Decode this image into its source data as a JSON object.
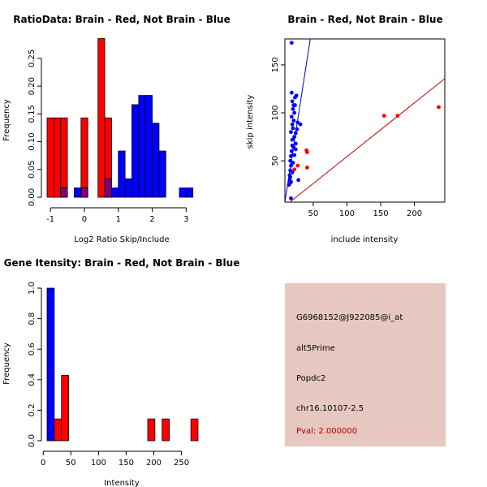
{
  "colors": {
    "red": "#ff0000",
    "blue": "#0000ff",
    "overlap": "#7f007f",
    "panel": "#e6c8c0"
  },
  "info_panel": {
    "probe": "G6968152@J922085@i_at",
    "event": "alt5Prime",
    "gene": "Popdc2",
    "location": "chr16.10107-2.5",
    "pval": "Pval: 2.000000"
  },
  "chart_data": [
    {
      "id": "ratio",
      "type": "bar",
      "title": "RatioData: Brain - Red, Not Brain - Blue",
      "xlabel": "Log2 Ratio Skip/Include",
      "ylabel": "Frequency",
      "xlim": [
        -1.1,
        3.35
      ],
      "ylim": [
        0,
        0.285
      ],
      "xticks": [
        -1,
        0,
        1,
        2,
        3
      ],
      "yticks": [
        0.0,
        0.05,
        0.1,
        0.15,
        0.2,
        0.25
      ],
      "ytick_labels": [
        "0.00",
        "0.05",
        "0.10",
        "0.15",
        "0.20",
        "0.25"
      ],
      "series": [
        {
          "name": "Brain",
          "color": "red",
          "bars": [
            {
              "x0": -1.1,
              "x1": -0.9,
              "y": 0.1429
            },
            {
              "x0": -0.9,
              "x1": -0.7,
              "y": 0.1429
            },
            {
              "x0": -0.7,
              "x1": -0.5,
              "y": 0.1429
            },
            {
              "x0": -0.1,
              "x1": 0.1,
              "y": 0.1429
            },
            {
              "x0": 0.4,
              "x1": 0.6,
              "y": 0.2857
            },
            {
              "x0": 0.6,
              "x1": 0.8,
              "y": 0.1429
            }
          ]
        },
        {
          "name": "Not Brain",
          "color": "blue",
          "bars": [
            {
              "x0": -0.7,
              "x1": -0.5,
              "y": 0.0167
            },
            {
              "x0": -0.3,
              "x1": -0.1,
              "y": 0.0167
            },
            {
              "x0": -0.1,
              "x1": 0.1,
              "y": 0.0167
            },
            {
              "x0": 0.6,
              "x1": 0.8,
              "y": 0.0333
            },
            {
              "x0": 0.8,
              "x1": 1.0,
              "y": 0.0167
            },
            {
              "x0": 1.0,
              "x1": 1.2,
              "y": 0.0833
            },
            {
              "x0": 1.2,
              "x1": 1.4,
              "y": 0.0333
            },
            {
              "x0": 1.4,
              "x1": 1.6,
              "y": 0.1667
            },
            {
              "x0": 1.6,
              "x1": 1.8,
              "y": 0.1833
            },
            {
              "x0": 1.8,
              "x1": 2.0,
              "y": 0.1833
            },
            {
              "x0": 2.0,
              "x1": 2.2,
              "y": 0.1333
            },
            {
              "x0": 2.2,
              "x1": 2.4,
              "y": 0.0833
            },
            {
              "x0": 2.8,
              "x1": 3.0,
              "y": 0.0167
            },
            {
              "x0": 3.0,
              "x1": 3.2,
              "y": 0.0167
            }
          ]
        }
      ]
    },
    {
      "id": "scatter",
      "type": "scatter",
      "title": "Brain - Red, Not Brain - Blue",
      "xlabel": "include intensity",
      "ylabel": "skip intensity",
      "xlim": [
        8,
        245
      ],
      "ylim": [
        7,
        177
      ],
      "xticks": [
        50,
        100,
        150,
        200
      ],
      "yticks": [
        50,
        100,
        150
      ],
      "series": [
        {
          "name": "Brain",
          "color": "red",
          "points": [
            [
              22,
              41
            ],
            [
              27,
              45
            ],
            [
              40,
              61
            ],
            [
              41,
              59
            ],
            [
              41,
              43
            ],
            [
              155,
              97
            ],
            [
              175,
              97
            ],
            [
              236,
              106
            ]
          ],
          "line": {
            "x": [
              8,
              245
            ],
            "y": [
              2.8,
              135.7
            ]
          }
        },
        {
          "name": "Not Brain",
          "color": "blue",
          "points": [
            [
              17,
              11
            ],
            [
              18,
              173
            ],
            [
              15,
              30
            ],
            [
              15,
              35
            ],
            [
              16,
              40
            ],
            [
              17,
              28
            ],
            [
              17,
              45
            ],
            [
              16,
              50
            ],
            [
              17,
              55
            ],
            [
              18,
              60
            ],
            [
              19,
              66
            ],
            [
              19,
              72
            ],
            [
              17,
              80
            ],
            [
              20,
              84
            ],
            [
              19,
              88
            ],
            [
              21,
              92
            ],
            [
              18,
              96
            ],
            [
              22,
              100
            ],
            [
              20,
              104
            ],
            [
              21,
              108
            ],
            [
              19,
              112
            ],
            [
              23,
              116
            ],
            [
              18,
              121
            ],
            [
              25,
              118
            ],
            [
              22,
              75
            ],
            [
              24,
              79
            ],
            [
              26,
              83
            ],
            [
              27,
              90
            ],
            [
              24,
              68
            ],
            [
              31,
              88
            ],
            [
              24,
              62
            ],
            [
              19,
              38
            ],
            [
              16,
              33
            ],
            [
              14,
              25
            ],
            [
              20,
              48
            ],
            [
              22,
              56
            ],
            [
              21,
              64
            ],
            [
              23,
              108
            ],
            [
              28,
              30
            ],
            [
              16,
              27
            ]
          ],
          "line": {
            "x": [
              8,
              45.6
            ],
            "y": [
              7,
              177
            ]
          }
        }
      ]
    },
    {
      "id": "intensity",
      "type": "bar",
      "title": "Gene Itensity: Brain - Red, Not Brain - Blue",
      "xlabel": "Intensity",
      "ylabel": "Frequency",
      "xlim": [
        7,
        280
      ],
      "ylim": [
        0,
        1.0
      ],
      "xticks": [
        0,
        50,
        100,
        150,
        200,
        250
      ],
      "yticks": [
        0.0,
        0.2,
        0.4,
        0.6,
        0.8,
        1.0
      ],
      "ytick_labels": [
        "0.0",
        "0.2",
        "0.4",
        "0.6",
        "0.8",
        "1.0"
      ],
      "series": [
        {
          "name": "Brain",
          "color": "red",
          "bars": [
            {
              "x0": 20,
              "x1": 33,
              "y": 0.1429
            },
            {
              "x0": 33,
              "x1": 46,
              "y": 0.4286
            },
            {
              "x0": 189,
              "x1": 202,
              "y": 0.1429
            },
            {
              "x0": 215,
              "x1": 228,
              "y": 0.1429
            },
            {
              "x0": 267,
              "x1": 280,
              "y": 0.1429
            }
          ]
        },
        {
          "name": "Not Brain",
          "color": "blue",
          "bars": [
            {
              "x0": 7,
              "x1": 20,
              "y": 1.0
            }
          ]
        }
      ]
    }
  ]
}
